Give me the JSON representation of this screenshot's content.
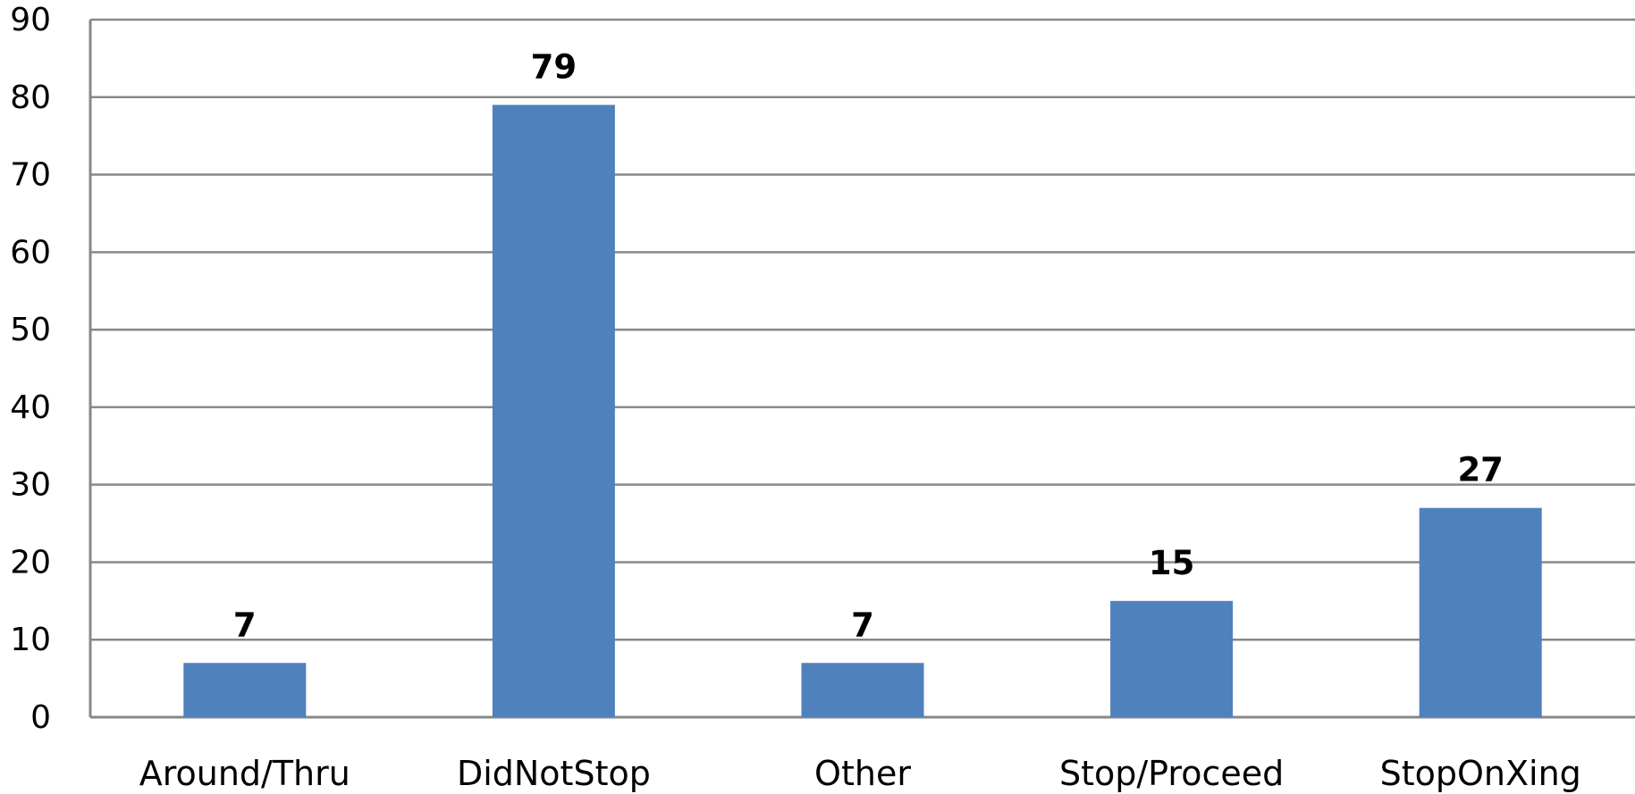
{
  "chart_data": {
    "type": "bar",
    "categories": [
      "Around/Thru",
      "DidNotStop",
      "Other",
      "Stop/Proceed",
      "StopOnXing"
    ],
    "values": [
      7,
      79,
      7,
      15,
      27
    ],
    "data_labels": [
      "7",
      "79",
      "7",
      "15",
      "27"
    ],
    "title": "",
    "xlabel": "",
    "ylabel": "",
    "ylim": [
      0,
      90
    ],
    "yticks": [
      0,
      10,
      20,
      30,
      40,
      50,
      60,
      70,
      80,
      90
    ],
    "ytick_labels": [
      "0",
      "10",
      "20",
      "30",
      "40",
      "50",
      "60",
      "70",
      "80",
      "90"
    ],
    "grid": true,
    "legend": "none",
    "colors": {
      "bar": "#4F81BD",
      "grid": "#888888",
      "axis": "#888888",
      "text": "#000000"
    }
  }
}
